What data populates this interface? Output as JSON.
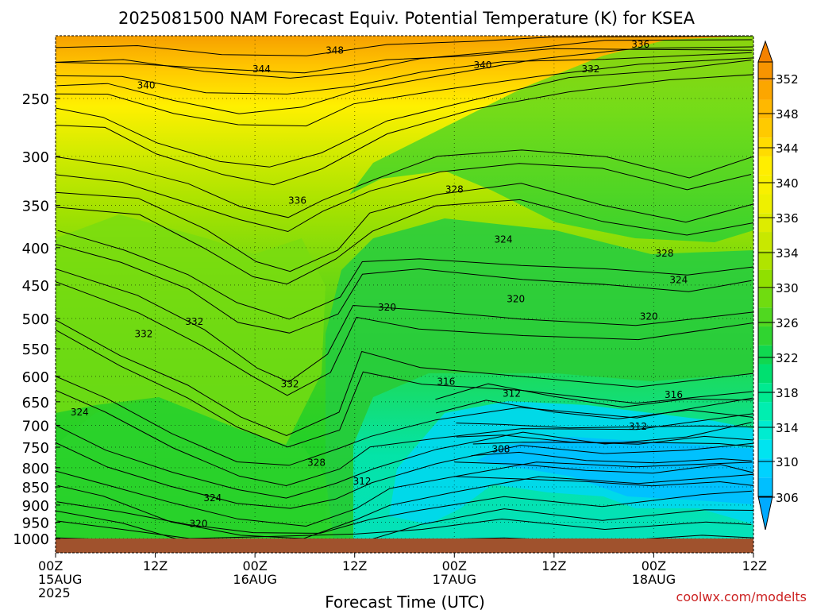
{
  "chart_data": {
    "type": "heatmap",
    "title": "2025081500 NAM Forecast Equiv. Potential Temperature (K) for KSEA",
    "xlabel": "Forecast Time (UTC)",
    "ylabel": "",
    "credit": "coolwx.com/modelts",
    "y_ticks": [
      250,
      300,
      350,
      400,
      450,
      500,
      550,
      600,
      650,
      700,
      750,
      800,
      850,
      900,
      950,
      1000
    ],
    "ylim": [
      1000,
      200
    ],
    "y_scale": "log",
    "x_ticks": [
      {
        "hour": 0,
        "l1": "00Z",
        "l2": "15AUG",
        "l3": "2025"
      },
      {
        "hour": 12,
        "l1": "12Z",
        "l2": "",
        "l3": ""
      },
      {
        "hour": 24,
        "l1": "00Z",
        "l2": "16AUG",
        "l3": ""
      },
      {
        "hour": 36,
        "l1": "12Z",
        "l2": "",
        "l3": ""
      },
      {
        "hour": 48,
        "l1": "00Z",
        "l2": "17AUG",
        "l3": ""
      },
      {
        "hour": 60,
        "l1": "12Z",
        "l2": "",
        "l3": ""
      },
      {
        "hour": 72,
        "l1": "00Z",
        "l2": "18AUG",
        "l3": ""
      },
      {
        "hour": 84,
        "l1": "12Z",
        "l2": "",
        "l3": ""
      }
    ],
    "xlim": [
      0,
      84
    ],
    "grid": true,
    "colorbar": {
      "levels": [
        306,
        310,
        314,
        318,
        322,
        326,
        330,
        334,
        336,
        340,
        344,
        348,
        352
      ],
      "bounds": [
        304,
        306,
        308,
        310,
        312,
        314,
        316,
        318,
        320,
        322,
        324,
        326,
        328,
        330,
        332,
        334,
        336,
        338,
        340,
        342,
        344,
        346,
        348,
        350,
        352,
        354
      ],
      "colors": [
        "#00aaff",
        "#00bfff",
        "#00d2ff",
        "#00e4f0",
        "#00ecd0",
        "#00eeb0",
        "#00ea90",
        "#00e070",
        "#10d850",
        "#30d430",
        "#50d820",
        "#70dc10",
        "#90e000",
        "#b0e400",
        "#c8e800",
        "#ddec00",
        "#eef000",
        "#f8f000",
        "#ffee00",
        "#ffdc00",
        "#ffca00",
        "#ffb800",
        "#fca600",
        "#f89400",
        "#f48200"
      ]
    },
    "contour_labels": [
      {
        "hour": 33.6,
        "p": 215,
        "value": "348"
      },
      {
        "hour": 24.8,
        "p": 228,
        "value": "344"
      },
      {
        "hour": 10.9,
        "p": 240,
        "value": "340"
      },
      {
        "hour": 51.4,
        "p": 225,
        "value": "340"
      },
      {
        "hour": 70.4,
        "p": 211,
        "value": "336"
      },
      {
        "hour": 64.4,
        "p": 228,
        "value": "332"
      },
      {
        "hour": 29.1,
        "p": 345,
        "value": "336"
      },
      {
        "hour": 48.0,
        "p": 333,
        "value": "328"
      },
      {
        "hour": 53.9,
        "p": 390,
        "value": "324"
      },
      {
        "hour": 73.3,
        "p": 407,
        "value": "328"
      },
      {
        "hour": 75.0,
        "p": 443,
        "value": "324"
      },
      {
        "hour": 39.9,
        "p": 483,
        "value": "320"
      },
      {
        "hour": 55.4,
        "p": 470,
        "value": "320"
      },
      {
        "hour": 71.4,
        "p": 497,
        "value": "320"
      },
      {
        "hour": 10.6,
        "p": 525,
        "value": "332"
      },
      {
        "hour": 16.7,
        "p": 505,
        "value": "332"
      },
      {
        "hour": 47.0,
        "p": 610,
        "value": "316"
      },
      {
        "hour": 54.9,
        "p": 633,
        "value": "312"
      },
      {
        "hour": 74.4,
        "p": 636,
        "value": "316"
      },
      {
        "hour": 28.2,
        "p": 615,
        "value": "332"
      },
      {
        "hour": 2.9,
        "p": 672,
        "value": "324"
      },
      {
        "hour": 70.1,
        "p": 703,
        "value": "312"
      },
      {
        "hour": 53.6,
        "p": 755,
        "value": "308"
      },
      {
        "hour": 31.4,
        "p": 787,
        "value": "328"
      },
      {
        "hour": 36.9,
        "p": 835,
        "value": "312"
      },
      {
        "hour": 18.9,
        "p": 880,
        "value": "324"
      },
      {
        "hour": 17.2,
        "p": 955,
        "value": "320"
      }
    ]
  }
}
